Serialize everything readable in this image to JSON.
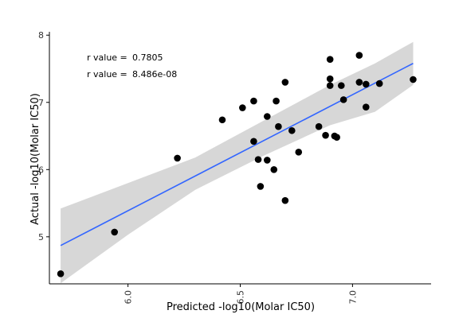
{
  "chart_data": {
    "type": "scatter",
    "title": "",
    "xlabel": "Predicted -log10(Molar IC50)",
    "ylabel": "Actual -log10(Molar IC50)",
    "xlim": [
      5.65,
      7.35
    ],
    "ylim": [
      4.3,
      8.05
    ],
    "xticks": [
      6.0,
      6.5,
      7.0
    ],
    "xtick_labels": [
      "6.0",
      "6.5",
      "7.0"
    ],
    "yticks": [
      5,
      6,
      7,
      8
    ],
    "ytick_labels": [
      "5",
      "6",
      "7",
      "8"
    ],
    "grid": false,
    "points": [
      {
        "x": 5.7,
        "y": 4.45
      },
      {
        "x": 5.94,
        "y": 5.07
      },
      {
        "x": 6.22,
        "y": 6.17
      },
      {
        "x": 6.42,
        "y": 6.74
      },
      {
        "x": 6.51,
        "y": 6.92
      },
      {
        "x": 6.56,
        "y": 7.02
      },
      {
        "x": 6.56,
        "y": 6.42
      },
      {
        "x": 6.58,
        "y": 6.15
      },
      {
        "x": 6.59,
        "y": 5.75
      },
      {
        "x": 6.62,
        "y": 6.79
      },
      {
        "x": 6.62,
        "y": 6.14
      },
      {
        "x": 6.65,
        "y": 6.0
      },
      {
        "x": 6.66,
        "y": 7.02
      },
      {
        "x": 6.67,
        "y": 6.64
      },
      {
        "x": 6.7,
        "y": 7.3
      },
      {
        "x": 6.7,
        "y": 5.54
      },
      {
        "x": 6.73,
        "y": 6.58
      },
      {
        "x": 6.76,
        "y": 6.26
      },
      {
        "x": 6.85,
        "y": 6.64
      },
      {
        "x": 6.88,
        "y": 6.51
      },
      {
        "x": 6.9,
        "y": 7.64
      },
      {
        "x": 6.9,
        "y": 7.35
      },
      {
        "x": 6.9,
        "y": 7.25
      },
      {
        "x": 6.92,
        "y": 6.5
      },
      {
        "x": 6.93,
        "y": 6.48
      },
      {
        "x": 6.95,
        "y": 7.25
      },
      {
        "x": 6.96,
        "y": 7.04
      },
      {
        "x": 7.03,
        "y": 7.7
      },
      {
        "x": 7.03,
        "y": 7.3
      },
      {
        "x": 7.06,
        "y": 7.27
      },
      {
        "x": 7.06,
        "y": 6.93
      },
      {
        "x": 7.12,
        "y": 7.28
      },
      {
        "x": 7.27,
        "y": 7.34
      }
    ],
    "fit_line": {
      "x": [
        5.7,
        7.27
      ],
      "y": [
        4.87,
        7.58
      ],
      "color": "#3366ff"
    },
    "confidence_band": {
      "x": [
        5.7,
        6.0,
        6.3,
        6.6,
        6.9,
        7.1,
        7.27
      ],
      "lower": [
        4.31,
        5.03,
        5.7,
        6.2,
        6.66,
        6.86,
        7.26
      ],
      "upper": [
        5.42,
        5.8,
        6.18,
        6.72,
        7.26,
        7.58,
        7.9
      ]
    },
    "annotations": [
      {
        "label": "r value =",
        "value": "0.7805"
      },
      {
        "label": "r value =",
        "value": "8.486e-08"
      }
    ]
  }
}
